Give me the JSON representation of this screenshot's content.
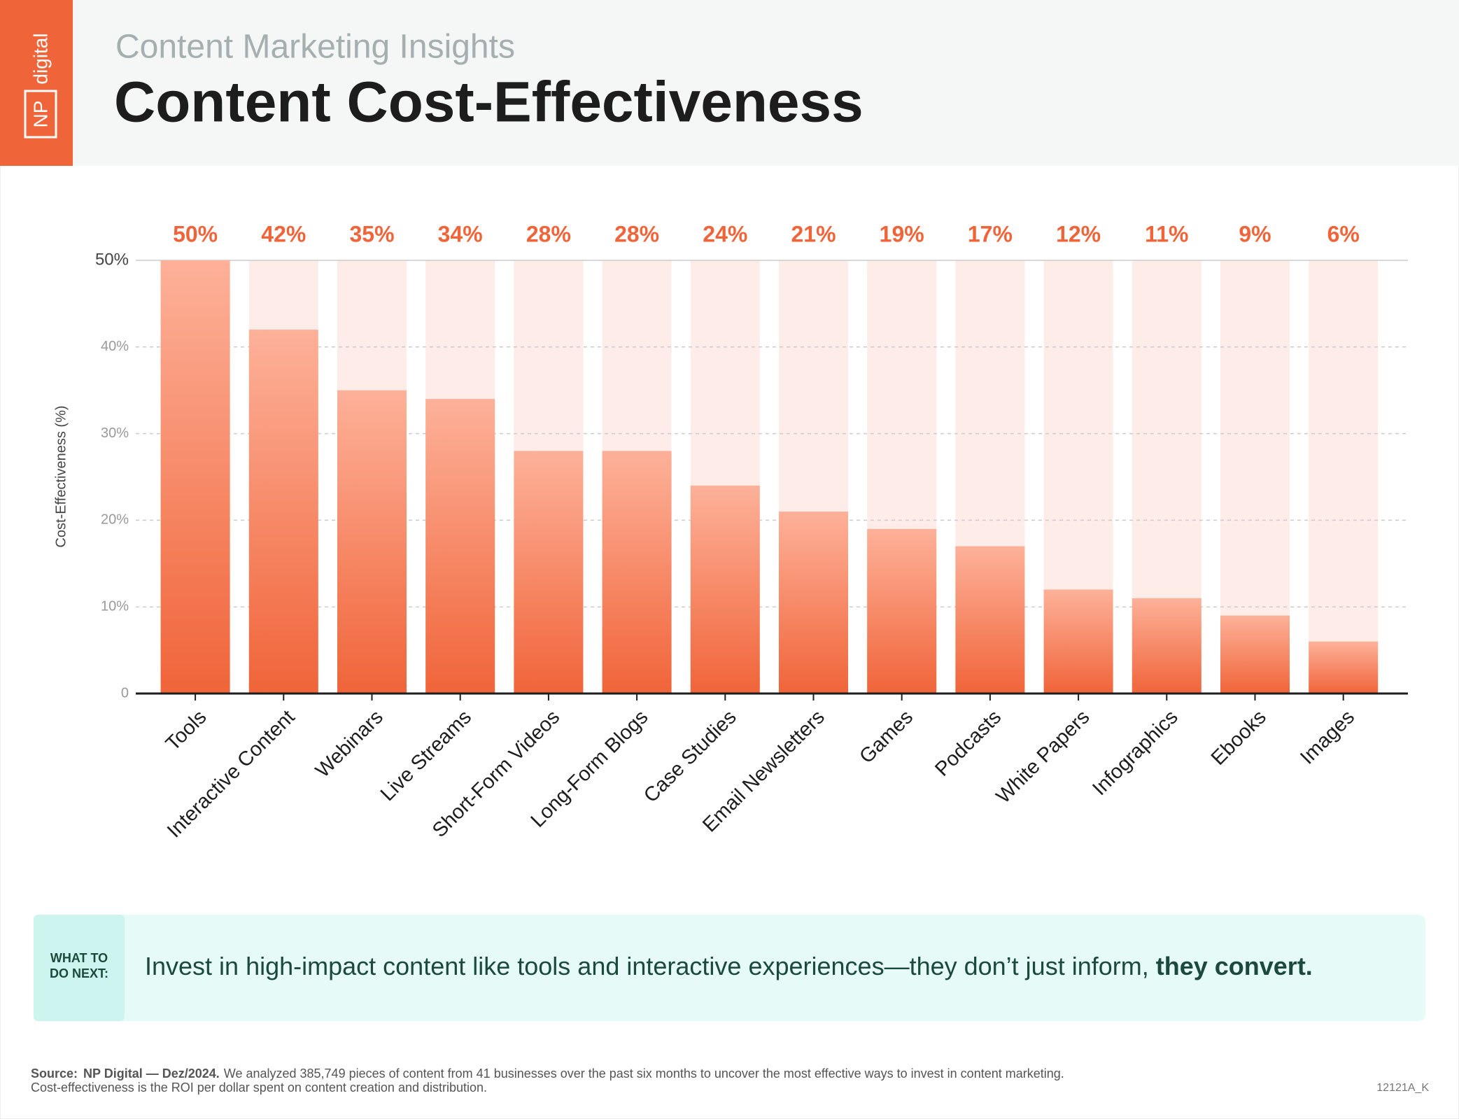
{
  "header": {
    "logo": [
      "NP",
      "digital"
    ],
    "subtitle": "Content Marketing Insights",
    "title": "Content Cost-Effectiveness"
  },
  "chart_data": {
    "type": "bar",
    "y_label": "Cost-Effectiveness (%)",
    "categories": [
      "Tools",
      "Interactive Content",
      "Webinars",
      "Live Streams",
      "Short-Form Videos",
      "Long-Form Blogs",
      "Case Studies",
      "Email Newsletters",
      "Games",
      "Podcasts",
      "White Papers",
      "Infographics",
      "Ebooks",
      "Images"
    ],
    "values": [
      50,
      42,
      35,
      34,
      28,
      28,
      24,
      21,
      19,
      17,
      12,
      11,
      9,
      6
    ],
    "value_labels": [
      "50%",
      "42%",
      "35%",
      "34%",
      "28%",
      "28%",
      "24%",
      "21%",
      "19%",
      "17%",
      "12%",
      "11%",
      "9%",
      "6%"
    ],
    "color": "#f06439",
    "ylim": [
      0,
      50
    ],
    "yticks": [
      0,
      {
        "value": 10,
        "label": "10%"
      },
      {
        "value": 20,
        "label": "20%"
      },
      {
        "value": 30,
        "label": "30%"
      },
      {
        "value": 40,
        "label": "40%"
      },
      {
        "value": 50,
        "label": "50%"
      }
    ],
    "grid": true
  },
  "callout": {
    "label": [
      "WHAT TO",
      "DO NEXT:"
    ],
    "text": "Invest in high-impact content like tools and interactive experiences—they don’t just inform, ",
    "emphasis": "they convert."
  },
  "source": {
    "label": "Source:",
    "name": "NP Digital — Dez/2024.",
    "text": "We analyzed 385,749 pieces of content from 41 businesses over the past six months to uncover the most effective ways to invest in content marketing.",
    "note": "Cost-effectiveness is the ROI per dollar spent on content creation and distribution.",
    "code": "12121A_K"
  }
}
